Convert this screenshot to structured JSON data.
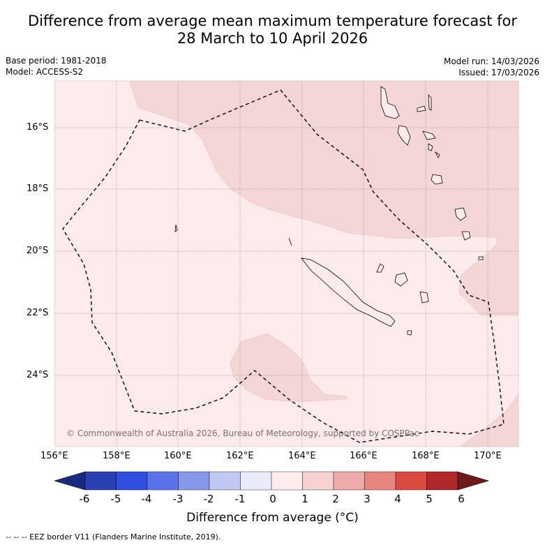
{
  "title_line1": "Difference from average mean maximum temperature forecast for",
  "title_line2": "28 March to 10 April 2026",
  "base_period": "Base period: 1981-2018",
  "model": "Model: ACCESS-S2",
  "model_run": "Model run: 14/03/2026",
  "issued": "Issued: 17/03/2026",
  "copyright": "© Commonwealth of Australia 2026, Bureau of Meteorology, supported by COSPPac",
  "lon_ticks": [
    "156°E",
    "158°E",
    "160°E",
    "162°E",
    "164°E",
    "166°E",
    "168°E",
    "170°E"
  ],
  "lat_ticks": [
    "16°S",
    "18°S",
    "20°S",
    "22°S",
    "24°S"
  ],
  "colorbar": {
    "title": "Difference from average (°C)",
    "labels": [
      "-6",
      "-5",
      "-4",
      "-3",
      "-2",
      "-1",
      "0",
      "1",
      "2",
      "3",
      "4",
      "5",
      "6"
    ],
    "colors": [
      "#1a2a80",
      "#2a3fb0",
      "#2f4fe0",
      "#5a74e8",
      "#8797ea",
      "#c0c8f4",
      "#e8ecfb",
      "#fdecea",
      "#f6d2d0",
      "#eeaba7",
      "#e8857e",
      "#db4a3f",
      "#b0282a",
      "#6e1a1a"
    ]
  },
  "legend_footnote": "--  --  -- EEZ border V11 (Flanders Marine Institute, 2019).",
  "map_fill_colors": {
    "light": "#fcebea",
    "medium": "#f4d6d6"
  }
}
